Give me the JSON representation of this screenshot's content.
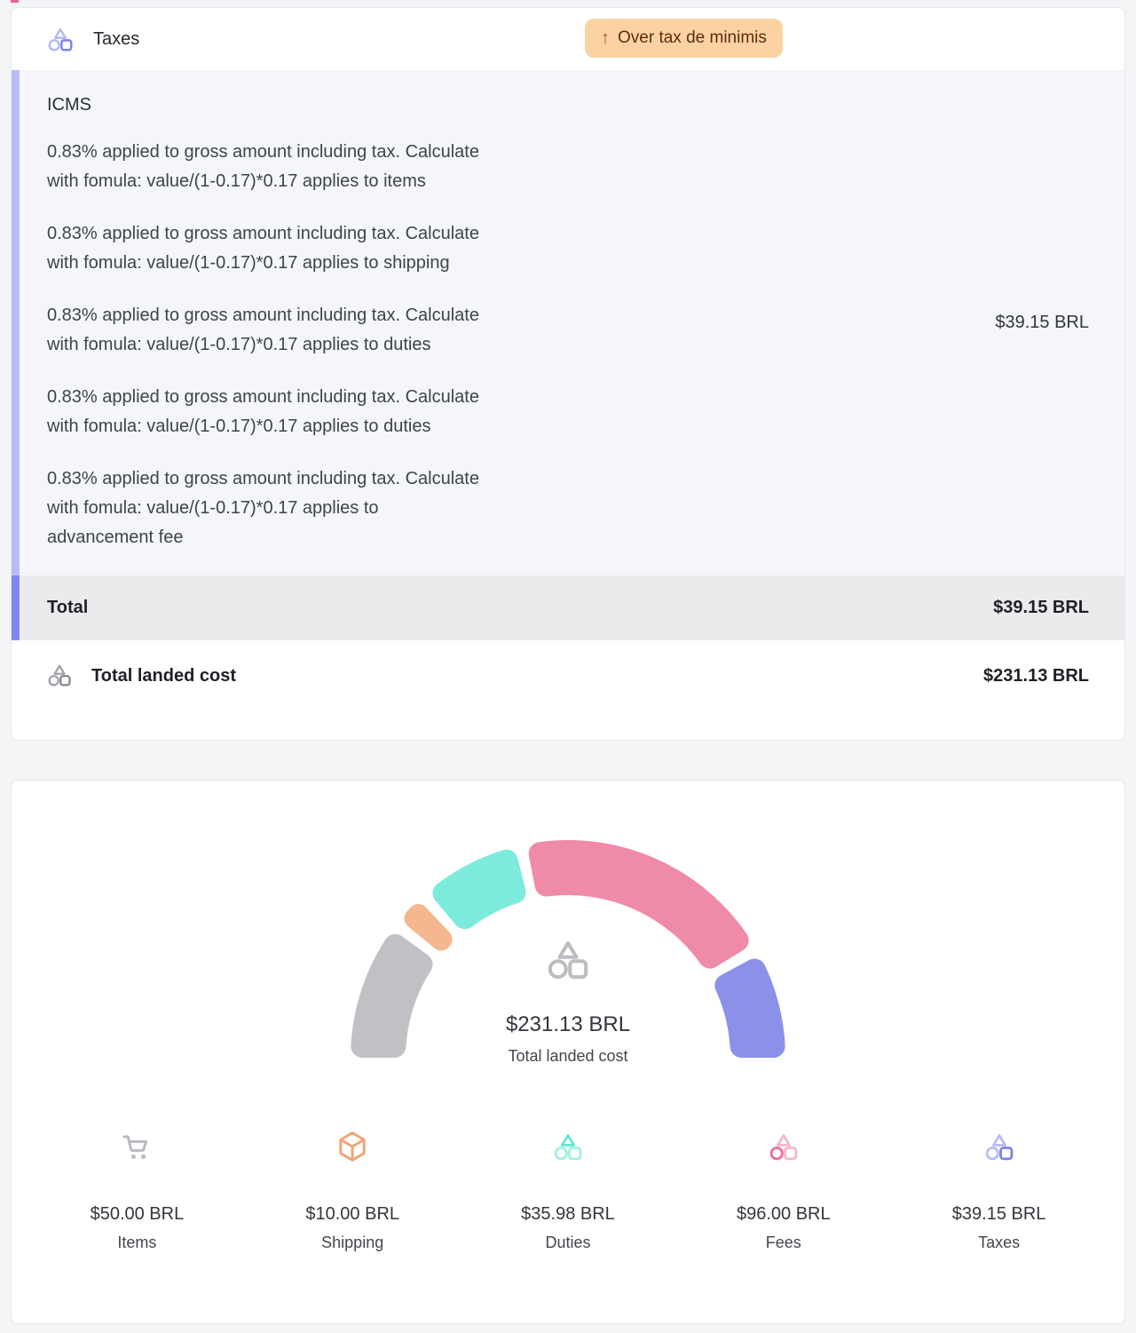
{
  "page": {
    "top_sliver_color": "#ee5f94"
  },
  "tax_card": {
    "accent_light": "#b7bbf6",
    "accent_dark": "#8187ef",
    "header": {
      "title": "Taxes",
      "badge": {
        "arrow": "↑",
        "label": "Over tax de minimis",
        "bg": "#fbd3a2",
        "text_color": "#5a2e10"
      }
    },
    "icms": {
      "heading": "ICMS",
      "paragraphs": [
        "0.83% applied to gross amount including tax. Calculate\nwith fomula: value/(1-0.17)*0.17 applies to items",
        "0.83% applied to gross amount including tax. Calculate\nwith fomula: value/(1-0.17)*0.17 applies to shipping",
        "0.83% applied to gross amount including tax. Calculate\nwith fomula: value/(1-0.17)*0.17 applies to duties",
        "0.83% applied to gross amount including tax. Calculate\nwith fomula: value/(1-0.17)*0.17 applies to duties",
        "0.83% applied to gross amount including tax. Calculate\nwith fomula: value/(1-0.17)*0.17 applies to\nadvancement fee"
      ],
      "amount": "$39.15 BRL"
    },
    "total_row": {
      "label": "Total",
      "amount": "$39.15 BRL"
    },
    "landed_row": {
      "label": "Total landed cost",
      "amount": "$231.13 BRL"
    },
    "header_icon_colors": {
      "lite": "#b5b9f5",
      "strong": "#7a81ee"
    },
    "landed_icon_colors": {
      "lite": "#9fa1a7",
      "strong": "#84868d"
    }
  },
  "chart_data": {
    "type": "gauge",
    "title": "Total landed cost",
    "categories": [
      "Items",
      "Shipping",
      "Duties",
      "Fees",
      "Taxes"
    ],
    "values": [
      50.0,
      10.0,
      35.98,
      96.0,
      39.15
    ],
    "total": 231.13,
    "currency": "BRL",
    "colors": [
      "#c1c1c5",
      "#f5b78d",
      "#7cebdb",
      "#f08ba7",
      "#8b90e9"
    ],
    "start_angle": 180,
    "end_angle": 0,
    "gap_deg": 3.2,
    "center": {
      "amount": "$231.13 BRL",
      "label": "Total landed cost",
      "icon_color": "#bcbdc1"
    },
    "legend": [
      {
        "value": "$50.00 BRL",
        "label": "Items",
        "icon": "cart-icon",
        "color": "#b9bbc0"
      },
      {
        "value": "$10.00 BRL",
        "label": "Shipping",
        "icon": "package-icon",
        "color": "#f0a573"
      },
      {
        "value": "$35.98 BRL",
        "label": "Duties",
        "icon": "shapes-triangle-icon",
        "lite": "#9ff0e2",
        "strong": "#5fe7d2"
      },
      {
        "value": "$96.00 BRL",
        "label": "Fees",
        "icon": "shapes-circle-icon",
        "lite": "#f4b6c7",
        "strong": "#eb6f95"
      },
      {
        "value": "$39.15 BRL",
        "label": "Taxes",
        "icon": "shapes-square-icon",
        "lite": "#b7bbf6",
        "strong": "#7a81ee"
      }
    ]
  }
}
